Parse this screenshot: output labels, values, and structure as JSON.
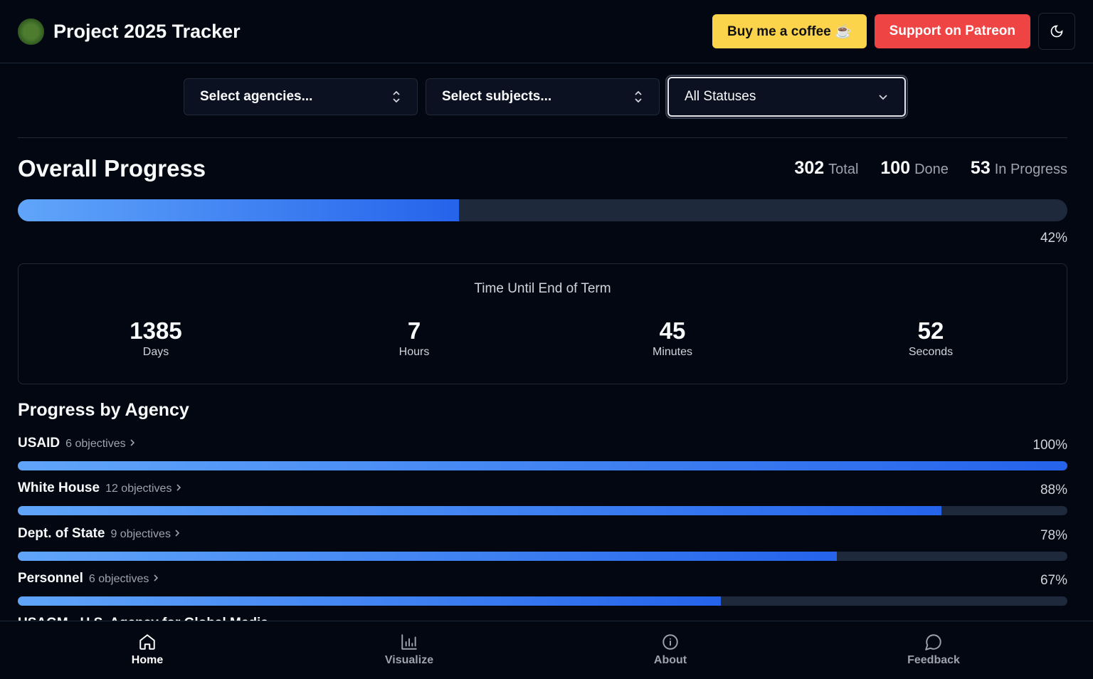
{
  "header": {
    "title": "Project 2025 Tracker",
    "buttons": [
      "Buy me a coffee ☕",
      "Support on Patreon"
    ]
  },
  "filters": [
    "Select agencies...",
    "Select subjects...",
    "All Statuses"
  ],
  "overall": {
    "title": "Overall Progress",
    "stats": [
      {
        "value": "302",
        "label": "Total"
      },
      {
        "value": "100",
        "label": "Done"
      },
      {
        "value": "53",
        "label": "In Progress"
      }
    ],
    "progress": {
      "value": 42,
      "label": "42%"
    }
  },
  "countdown": {
    "title": "Time Until End of Term",
    "units": [
      {
        "value": "1385",
        "label": "Days"
      },
      {
        "value": "7",
        "label": "Hours"
      },
      {
        "value": "45",
        "label": "Minutes"
      },
      {
        "value": "52",
        "label": "Seconds"
      }
    ]
  },
  "agencies": {
    "title": "Progress by Agency",
    "items": [
      {
        "name": "USAID",
        "objectives": "6 objectives",
        "progress": {
          "value": 100,
          "label": "100%"
        }
      },
      {
        "name": "White House",
        "objectives": "12 objectives",
        "progress": {
          "value": 88,
          "label": "88%"
        }
      },
      {
        "name": "Dept. of State",
        "objectives": "9 objectives",
        "progress": {
          "value": 78,
          "label": "78%"
        }
      },
      {
        "name": "Personnel",
        "objectives": "6 objectives",
        "progress": {
          "value": 67,
          "label": "67%"
        }
      },
      {
        "name": "USAGM - U.S. Agency for Global Media"
      }
    ]
  },
  "nav": [
    "Home",
    "Visualize",
    "About",
    "Feedback"
  ]
}
